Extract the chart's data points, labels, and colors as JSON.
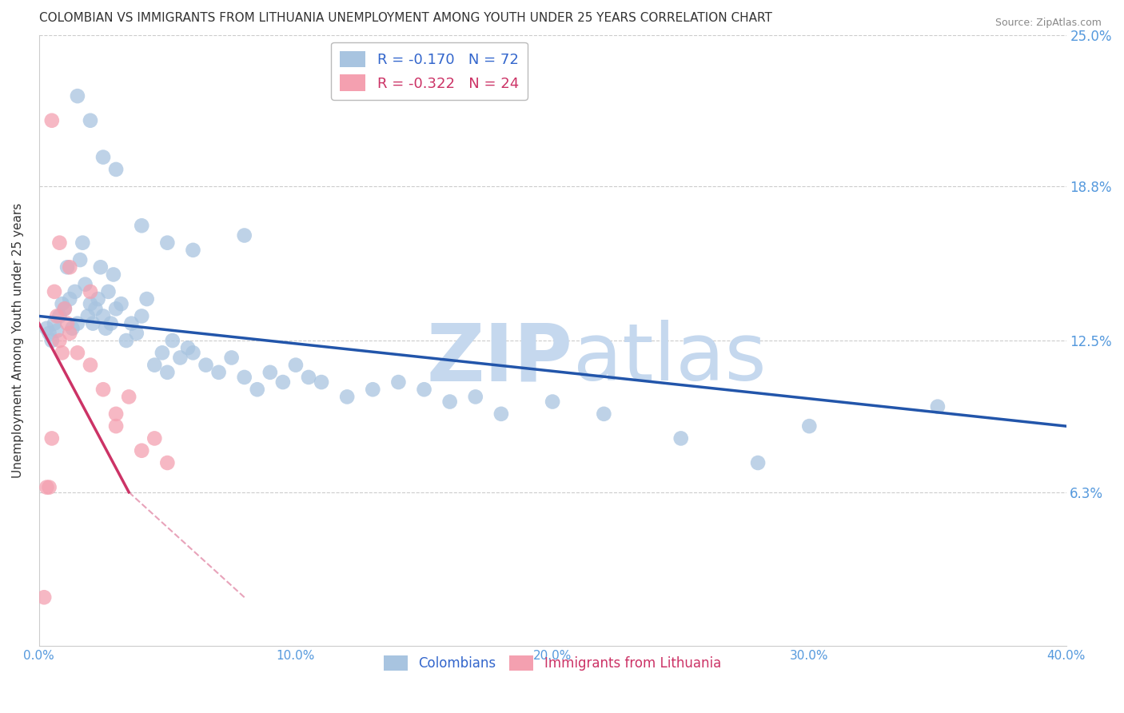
{
  "title": "COLOMBIAN VS IMMIGRANTS FROM LITHUANIA UNEMPLOYMENT AMONG YOUTH UNDER 25 YEARS CORRELATION CHART",
  "source": "Source: ZipAtlas.com",
  "ylabel": "Unemployment Among Youth under 25 years",
  "xlim": [
    0.0,
    40.0
  ],
  "ylim": [
    0.0,
    25.0
  ],
  "yticks": [
    6.3,
    12.5,
    18.8,
    25.0
  ],
  "xticks": [
    0.0,
    10.0,
    20.0,
    30.0,
    40.0
  ],
  "blue_R": -0.17,
  "blue_N": 72,
  "pink_R": -0.322,
  "pink_N": 24,
  "blue_color": "#a8c4e0",
  "pink_color": "#f4a0b0",
  "blue_line_color": "#2255aa",
  "pink_line_color": "#cc3366",
  "blue_scatter_x": [
    0.3,
    0.4,
    0.5,
    0.6,
    0.7,
    0.8,
    0.9,
    1.0,
    1.1,
    1.2,
    1.3,
    1.4,
    1.5,
    1.6,
    1.7,
    1.8,
    1.9,
    2.0,
    2.1,
    2.2,
    2.3,
    2.4,
    2.5,
    2.6,
    2.7,
    2.8,
    2.9,
    3.0,
    3.2,
    3.4,
    3.6,
    3.8,
    4.0,
    4.2,
    4.5,
    4.8,
    5.0,
    5.2,
    5.5,
    5.8,
    6.0,
    6.5,
    7.0,
    7.5,
    8.0,
    8.5,
    9.0,
    9.5,
    10.0,
    10.5,
    11.0,
    12.0,
    13.0,
    14.0,
    15.0,
    16.0,
    17.0,
    18.0,
    20.0,
    22.0,
    25.0,
    28.0,
    30.0,
    35.0,
    1.5,
    2.0,
    2.5,
    3.0,
    4.0,
    5.0,
    6.0,
    8.0
  ],
  "blue_scatter_y": [
    13.0,
    12.8,
    12.5,
    13.2,
    12.9,
    13.5,
    14.0,
    13.8,
    15.5,
    14.2,
    13.0,
    14.5,
    13.2,
    15.8,
    16.5,
    14.8,
    13.5,
    14.0,
    13.2,
    13.8,
    14.2,
    15.5,
    13.5,
    13.0,
    14.5,
    13.2,
    15.2,
    13.8,
    14.0,
    12.5,
    13.2,
    12.8,
    13.5,
    14.2,
    11.5,
    12.0,
    11.2,
    12.5,
    11.8,
    12.2,
    12.0,
    11.5,
    11.2,
    11.8,
    11.0,
    10.5,
    11.2,
    10.8,
    11.5,
    11.0,
    10.8,
    10.2,
    10.5,
    10.8,
    10.5,
    10.0,
    10.2,
    9.5,
    10.0,
    9.5,
    8.5,
    7.5,
    9.0,
    9.8,
    22.5,
    21.5,
    20.0,
    19.5,
    17.2,
    16.5,
    16.2,
    16.8
  ],
  "pink_scatter_x": [
    0.2,
    0.3,
    0.4,
    0.5,
    0.6,
    0.7,
    0.8,
    0.9,
    1.0,
    1.1,
    1.2,
    1.5,
    2.0,
    2.5,
    3.0,
    3.5,
    0.5,
    0.8,
    1.2,
    2.0,
    3.0,
    4.0,
    4.5,
    5.0
  ],
  "pink_scatter_y": [
    2.0,
    6.5,
    6.5,
    8.5,
    14.5,
    13.5,
    12.5,
    12.0,
    13.8,
    13.2,
    12.8,
    12.0,
    11.5,
    10.5,
    9.5,
    10.2,
    21.5,
    16.5,
    15.5,
    14.5,
    9.0,
    8.0,
    8.5,
    7.5
  ],
  "blue_line_start_x": 0.0,
  "blue_line_start_y": 13.5,
  "blue_line_end_x": 40.0,
  "blue_line_end_y": 9.0,
  "pink_line_start_x": 0.0,
  "pink_line_start_y": 13.2,
  "pink_line_end_x": 3.5,
  "pink_line_end_y": 6.3,
  "pink_dash_end_x": 8.0,
  "pink_dash_end_y": 2.0,
  "watermark_zip": "ZIP",
  "watermark_atlas": "atlas",
  "watermark_color": "#c5d8ee",
  "background_color": "#ffffff",
  "grid_color": "#cccccc",
  "title_fontsize": 11,
  "tick_label_color": "#5599dd",
  "legend_color_blue": "#3366cc",
  "legend_color_pink": "#cc3366"
}
